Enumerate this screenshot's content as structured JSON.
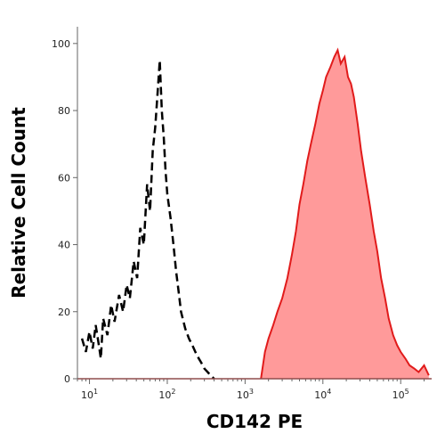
{
  "chart_data": {
    "type": "area",
    "xlabel": "CD142 PE",
    "ylabel": "Relative Cell Count",
    "x_scale": "log",
    "xlim": [
      7,
      250000
    ],
    "ylim": [
      0,
      105
    ],
    "grid": false,
    "x_ticks": [
      {
        "value": 10,
        "base": "10",
        "exp": "1"
      },
      {
        "value": 100,
        "base": "10",
        "exp": "2"
      },
      {
        "value": 1000,
        "base": "10",
        "exp": "3"
      },
      {
        "value": 10000,
        "base": "10",
        "exp": "4"
      },
      {
        "value": 100000,
        "base": "10",
        "exp": "5"
      }
    ],
    "y_ticks": [
      0,
      20,
      40,
      60,
      80,
      100
    ],
    "series": [
      {
        "style": "dashed",
        "color": "#000000",
        "x": [
          8,
          9,
          10,
          11,
          12,
          13,
          14,
          15,
          17,
          19,
          21,
          24,
          27,
          30,
          33,
          37,
          41,
          45,
          50,
          55,
          60,
          65,
          70,
          75,
          80,
          85,
          90,
          95,
          100,
          110,
          120,
          130,
          140,
          150,
          170,
          190,
          210,
          240,
          270,
          300,
          330,
          360,
          400
        ],
        "y": [
          12,
          8,
          14,
          9,
          16,
          11,
          6,
          18,
          13,
          22,
          17,
          25,
          20,
          28,
          24,
          35,
          30,
          45,
          40,
          58,
          50,
          68,
          75,
          85,
          95,
          80,
          72,
          62,
          55,
          48,
          40,
          32,
          26,
          20,
          15,
          12,
          10,
          7,
          5,
          3,
          2,
          1,
          0
        ]
      },
      {
        "style": "filled",
        "color": "#e11b1b",
        "fill": "#ff9a9a",
        "x": [
          1600,
          1800,
          2000,
          2300,
          2600,
          3000,
          3500,
          4000,
          4500,
          5000,
          5600,
          6300,
          7000,
          8000,
          9000,
          10000,
          11000,
          12500,
          14000,
          15500,
          17000,
          19000,
          21000,
          23000,
          25000,
          28000,
          31000,
          35000,
          40000,
          45000,
          50000,
          56000,
          63000,
          70000,
          80000,
          90000,
          100000,
          115000,
          130000,
          150000,
          170000,
          200000,
          230000
        ],
        "y": [
          0,
          8,
          12,
          16,
          20,
          24,
          30,
          37,
          44,
          52,
          58,
          65,
          70,
          76,
          82,
          86,
          90,
          93,
          96,
          98,
          94,
          96,
          90,
          88,
          84,
          76,
          68,
          60,
          52,
          44,
          38,
          30,
          24,
          18,
          13,
          10,
          8,
          6,
          4,
          3,
          2,
          4,
          1
        ]
      }
    ]
  }
}
